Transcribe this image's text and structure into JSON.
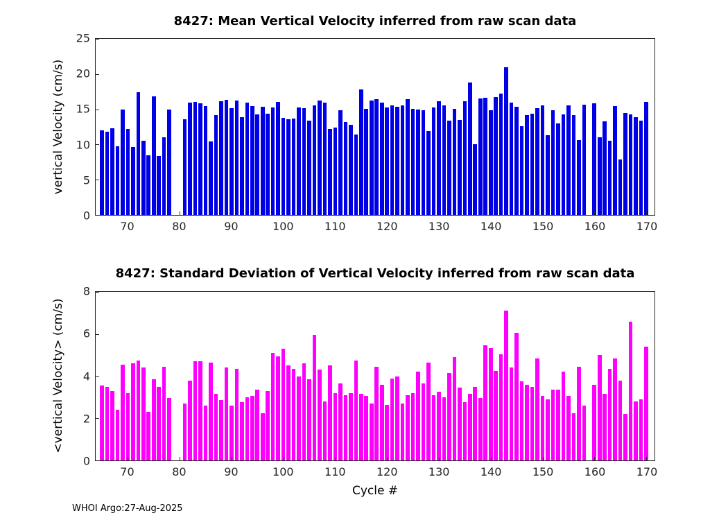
{
  "figure": {
    "footer": "WHOI Argo:27-Aug-2025"
  },
  "chart_data": [
    {
      "type": "bar",
      "title": "8427: Mean Vertical Velocity inferred from raw scan data",
      "xlabel": "",
      "ylabel": "vertical Velocity (cm/s)",
      "color": "#0000E6",
      "xlim": [
        63.8,
        171.6
      ],
      "ylim": [
        0,
        25
      ],
      "xticks": [
        70,
        80,
        90,
        100,
        110,
        120,
        130,
        140,
        150,
        160,
        170
      ],
      "yticks": [
        0,
        5,
        10,
        15,
        20,
        25
      ],
      "grid": false,
      "x": [
        65,
        66,
        67,
        68,
        69,
        70,
        71,
        72,
        73,
        74,
        75,
        76,
        77,
        78,
        81,
        82,
        83,
        84,
        85,
        86,
        87,
        88,
        89,
        90,
        91,
        92,
        93,
        94,
        95,
        96,
        97,
        98,
        99,
        100,
        101,
        102,
        103,
        104,
        105,
        106,
        107,
        108,
        109,
        110,
        111,
        112,
        113,
        114,
        115,
        116,
        117,
        118,
        119,
        120,
        121,
        122,
        123,
        124,
        125,
        126,
        127,
        128,
        129,
        130,
        131,
        132,
        133,
        134,
        135,
        136,
        137,
        138,
        139,
        140,
        141,
        142,
        143,
        144,
        145,
        146,
        147,
        148,
        149,
        150,
        151,
        152,
        153,
        154,
        155,
        156,
        157,
        158,
        160,
        161,
        162,
        163,
        164,
        165,
        166,
        167,
        168,
        169,
        170
      ],
      "values": [
        12.0,
        11.8,
        12.3,
        9.7,
        15.0,
        12.2,
        9.6,
        17.4,
        10.5,
        8.5,
        16.8,
        8.4,
        11.0,
        15.0,
        13.6,
        15.9,
        16.0,
        15.8,
        15.5,
        10.4,
        14.2,
        16.1,
        16.3,
        15.2,
        16.2,
        13.9,
        15.9,
        15.5,
        14.3,
        15.4,
        14.4,
        15.3,
        16.0,
        13.8,
        13.6,
        13.7,
        15.3,
        15.2,
        13.4,
        15.6,
        16.2,
        15.9,
        12.2,
        12.4,
        14.9,
        13.2,
        12.8,
        11.4,
        17.8,
        15.1,
        16.2,
        16.4,
        15.9,
        15.3,
        15.6,
        15.4,
        15.6,
        16.4,
        15.1,
        15.0,
        14.9,
        11.9,
        15.3,
        16.1,
        15.6,
        13.4,
        15.1,
        13.5,
        16.1,
        18.8,
        10.0,
        16.5,
        16.6,
        14.9,
        16.7,
        17.2,
        21.0,
        15.9,
        15.4,
        12.6,
        14.2,
        14.4,
        15.2,
        15.6,
        11.3,
        14.9,
        13.0,
        14.3,
        15.6,
        14.2,
        10.6,
        15.7,
        15.8,
        11.0,
        13.3,
        10.5,
        15.5,
        7.9,
        14.5,
        14.3,
        13.9,
        13.4,
        16.0
      ]
    },
    {
      "type": "bar",
      "title": "8427: Standard Deviation of Vertical Velocity inferred from raw scan data",
      "xlabel": "Cycle #",
      "ylabel": "<vertical Velocity> (cm/s)",
      "color": "#FF00FF",
      "xlim": [
        63.8,
        171.6
      ],
      "ylim": [
        0,
        8
      ],
      "xticks": [
        70,
        80,
        90,
        100,
        110,
        120,
        130,
        140,
        150,
        160,
        170
      ],
      "yticks": [
        0,
        2,
        4,
        6,
        8
      ],
      "grid": false,
      "x": [
        65,
        66,
        67,
        68,
        69,
        70,
        71,
        72,
        73,
        74,
        75,
        76,
        77,
        78,
        81,
        82,
        83,
        84,
        85,
        86,
        87,
        88,
        89,
        90,
        91,
        92,
        93,
        94,
        95,
        96,
        97,
        98,
        99,
        100,
        101,
        102,
        103,
        104,
        105,
        106,
        107,
        108,
        109,
        110,
        111,
        112,
        113,
        114,
        115,
        116,
        117,
        118,
        119,
        120,
        121,
        122,
        123,
        124,
        125,
        126,
        127,
        128,
        129,
        130,
        131,
        132,
        133,
        134,
        135,
        136,
        137,
        138,
        139,
        140,
        141,
        142,
        143,
        144,
        145,
        146,
        147,
        148,
        149,
        150,
        151,
        152,
        153,
        154,
        155,
        156,
        157,
        158,
        160,
        161,
        162,
        163,
        164,
        165,
        166,
        167,
        168,
        169,
        170
      ],
      "values": [
        3.55,
        3.5,
        3.3,
        2.4,
        4.55,
        3.2,
        4.6,
        4.75,
        4.4,
        2.3,
        3.85,
        3.5,
        4.45,
        2.95,
        2.7,
        3.8,
        4.7,
        4.7,
        2.6,
        4.65,
        3.15,
        2.85,
        4.4,
        2.6,
        4.35,
        2.75,
        3.0,
        3.05,
        3.35,
        2.25,
        3.3,
        5.1,
        4.95,
        5.3,
        4.5,
        4.35,
        4.0,
        4.6,
        3.85,
        5.95,
        4.3,
        2.8,
        4.5,
        3.2,
        3.65,
        3.1,
        3.2,
        4.75,
        3.15,
        3.05,
        2.7,
        4.45,
        3.6,
        2.65,
        3.9,
        4.0,
        2.7,
        3.1,
        3.2,
        4.2,
        3.65,
        4.65,
        3.1,
        3.25,
        3.0,
        4.15,
        4.9,
        3.45,
        2.75,
        3.15,
        3.5,
        2.95,
        5.45,
        5.35,
        4.25,
        5.05,
        7.1,
        4.4,
        6.05,
        3.75,
        3.6,
        3.5,
        4.85,
        3.05,
        2.9,
        3.35,
        3.35,
        4.2,
        3.05,
        2.25,
        4.45,
        2.6,
        3.6,
        5.0,
        3.15,
        4.35,
        4.85,
        3.8,
        2.2,
        6.6,
        2.8,
        2.9,
        5.4
      ]
    }
  ]
}
